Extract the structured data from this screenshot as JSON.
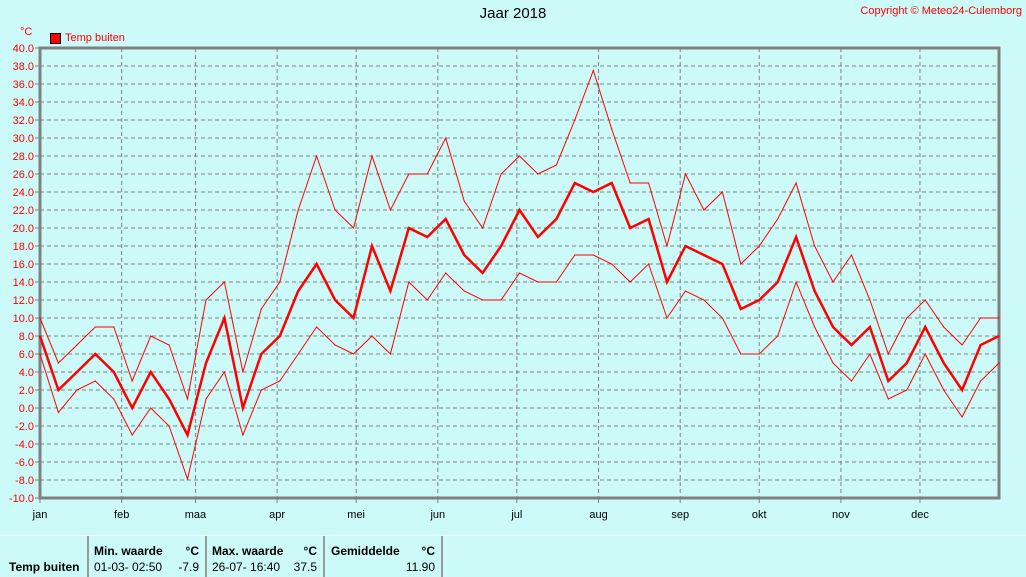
{
  "title": "Jaar 2018",
  "copyright": "Copyright © Meteo24-Culemborg",
  "stats": {
    "label": "Temp buiten",
    "min": {
      "header": "Min. waarde",
      "unit": "°C",
      "datetime": "01-03-  02:50",
      "value": "-7.9"
    },
    "max": {
      "header": "Max. waarde",
      "unit": "°C",
      "datetime": "26-07-  16:40",
      "value": "37.5"
    },
    "avg": {
      "header": "Gemiddelde",
      "unit": "°C",
      "value": "11.90"
    }
  },
  "chart_data": {
    "type": "line",
    "title": "Jaar 2018",
    "ylabel": "°C",
    "legend": {
      "label": "Temp buiten",
      "position": "top-left"
    },
    "color": "#ff0000",
    "grid": true,
    "ylim": [
      -10,
      40
    ],
    "yticks": [
      "40.0",
      "38.0",
      "36.0",
      "34.0",
      "32.0",
      "30.0",
      "28.0",
      "26.0",
      "24.0",
      "22.0",
      "20.0",
      "18.0",
      "16.0",
      "14.0",
      "12.0",
      "10.0",
      "8.0",
      "6.0",
      "4.0",
      "2.0",
      "0.0",
      "-2.0",
      "-4.0",
      "-6.0",
      "-8.0",
      "-10.0"
    ],
    "xlim": [
      "2018-01-01",
      "2018-12-31"
    ],
    "xticks": [
      "jan",
      "feb",
      "maa",
      "apr",
      "mei",
      "jun",
      "jul",
      "aug",
      "sep",
      "okt",
      "nov",
      "dec"
    ],
    "x_start": "2018-01-01",
    "x_step_days": 7,
    "series": [
      {
        "role": "max",
        "values": [
          10,
          5,
          7,
          9,
          9,
          3,
          8,
          7,
          1,
          12,
          14,
          4,
          11,
          14,
          22,
          28,
          22,
          20,
          28,
          22,
          26,
          26,
          30,
          23,
          20,
          26,
          28,
          26,
          27,
          32,
          37.5,
          31,
          25,
          25,
          18,
          26,
          22,
          24,
          16,
          18,
          21,
          25,
          18,
          14,
          17,
          12,
          6,
          10,
          12,
          9,
          7,
          10,
          10
        ]
      },
      {
        "role": "avg",
        "values": [
          8,
          2,
          4,
          6,
          4,
          0,
          4,
          1,
          -3,
          5,
          10,
          0,
          6,
          8,
          13,
          16,
          12,
          10,
          18,
          13,
          20,
          19,
          21,
          17,
          15,
          18,
          22,
          19,
          21,
          25,
          24,
          25,
          20,
          21,
          14,
          18,
          17,
          16,
          11,
          12,
          14,
          19,
          13,
          9,
          7,
          9,
          3,
          5,
          9,
          5,
          2,
          7,
          8
        ]
      },
      {
        "role": "min",
        "values": [
          6,
          -0.5,
          2,
          3,
          1,
          -3,
          0,
          -2,
          -7.9,
          1,
          4,
          -3,
          2,
          3,
          6,
          9,
          7,
          6,
          8,
          6,
          14,
          12,
          15,
          13,
          12,
          12,
          15,
          14,
          14,
          17,
          17,
          16,
          14,
          16,
          10,
          13,
          12,
          10,
          6,
          6,
          8,
          14,
          9,
          5,
          3,
          6,
          1,
          2,
          6,
          2,
          -1,
          3,
          5
        ]
      }
    ]
  }
}
